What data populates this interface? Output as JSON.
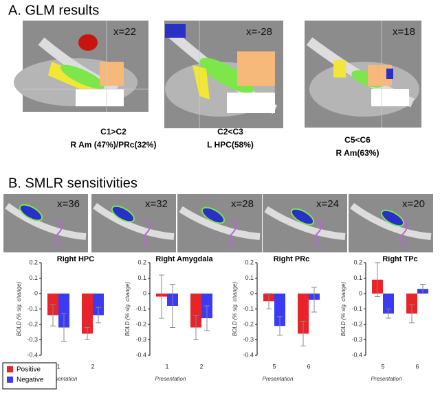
{
  "panel_a": {
    "title": "A.  GLM results",
    "images": [
      {
        "slice": "x=22",
        "contrast": "C1>C2",
        "region": "R Am (47%)/PRc(32%)"
      },
      {
        "slice": "x=-28",
        "contrast": "C2<C3",
        "region": "L HPC(58%)"
      },
      {
        "slice": "x=18",
        "contrast": "C5<C6",
        "region": "R Am(63%)"
      }
    ]
  },
  "panel_b": {
    "title": "B.  SMLR sensitivities",
    "slices": [
      "x=36",
      "x=32",
      "x=28",
      "x=24",
      "x=20"
    ]
  },
  "chart_data": [
    {
      "type": "bar",
      "title": "Right HPC",
      "ylabel": "BOLD (% sig. change)",
      "xlabel": "Presentation",
      "categories": [
        "1",
        "2"
      ],
      "ylim": [
        -0.4,
        0.2
      ],
      "yticks": [
        0.2,
        0.1,
        0,
        -0.1,
        -0.2,
        -0.3,
        -0.4
      ],
      "legend": "lower left",
      "series": [
        {
          "name": "Positive",
          "color": "#e8242a",
          "values": [
            -0.14,
            -0.26
          ],
          "errors": [
            0.07,
            0.04
          ]
        },
        {
          "name": "Negative",
          "color": "#3b3bf5",
          "values": [
            -0.22,
            -0.14
          ],
          "errors": [
            0.09,
            0.05
          ]
        }
      ]
    },
    {
      "type": "bar",
      "title": "Right Amygdala",
      "ylabel": "BOLD (% sig. change)",
      "xlabel": "Presentation",
      "categories": [
        "1",
        "2"
      ],
      "ylim": [
        -0.4,
        0.2
      ],
      "yticks": [
        0.2,
        0.1,
        0,
        -0.1,
        -0.2,
        -0.3,
        -0.4
      ],
      "series": [
        {
          "name": "Positive",
          "color": "#e8242a",
          "values": [
            -0.02,
            -0.22
          ],
          "errors": [
            0.14,
            0.08
          ]
        },
        {
          "name": "Negative",
          "color": "#3b3bf5",
          "values": [
            -0.08,
            -0.16
          ],
          "errors": [
            0.14,
            0.08
          ]
        }
      ]
    },
    {
      "type": "bar",
      "title": "Right PRc",
      "ylabel": "BOLD (% sig. change)",
      "xlabel": "Presentation",
      "categories": [
        "5",
        "6"
      ],
      "ylim": [
        -0.4,
        0.2
      ],
      "yticks": [
        0.2,
        0.1,
        0,
        -0.1,
        -0.2,
        -0.3,
        -0.4
      ],
      "series": [
        {
          "name": "Positive",
          "color": "#e8242a",
          "values": [
            -0.05,
            -0.26
          ],
          "errors": [
            0.05,
            0.08
          ]
        },
        {
          "name": "Negative",
          "color": "#3b3bf5",
          "values": [
            -0.21,
            -0.04
          ],
          "errors": [
            0.06,
            0.08
          ]
        }
      ]
    },
    {
      "type": "bar",
      "title": "Right TPc",
      "ylabel": "BOLD (% sig. change)",
      "xlabel": "Presentation",
      "categories": [
        "5",
        "6"
      ],
      "ylim": [
        -0.4,
        0.2
      ],
      "yticks": [
        0.2,
        0.1,
        0,
        -0.1,
        -0.2,
        -0.3,
        -0.4
      ],
      "series": [
        {
          "name": "Positive",
          "color": "#e8242a",
          "values": [
            0.09,
            -0.13
          ],
          "errors": [
            0.11,
            0.06
          ]
        },
        {
          "name": "Negative",
          "color": "#3b3bf5",
          "values": [
            -0.13,
            0.03
          ],
          "errors": [
            0.03,
            0.03
          ]
        }
      ]
    }
  ]
}
